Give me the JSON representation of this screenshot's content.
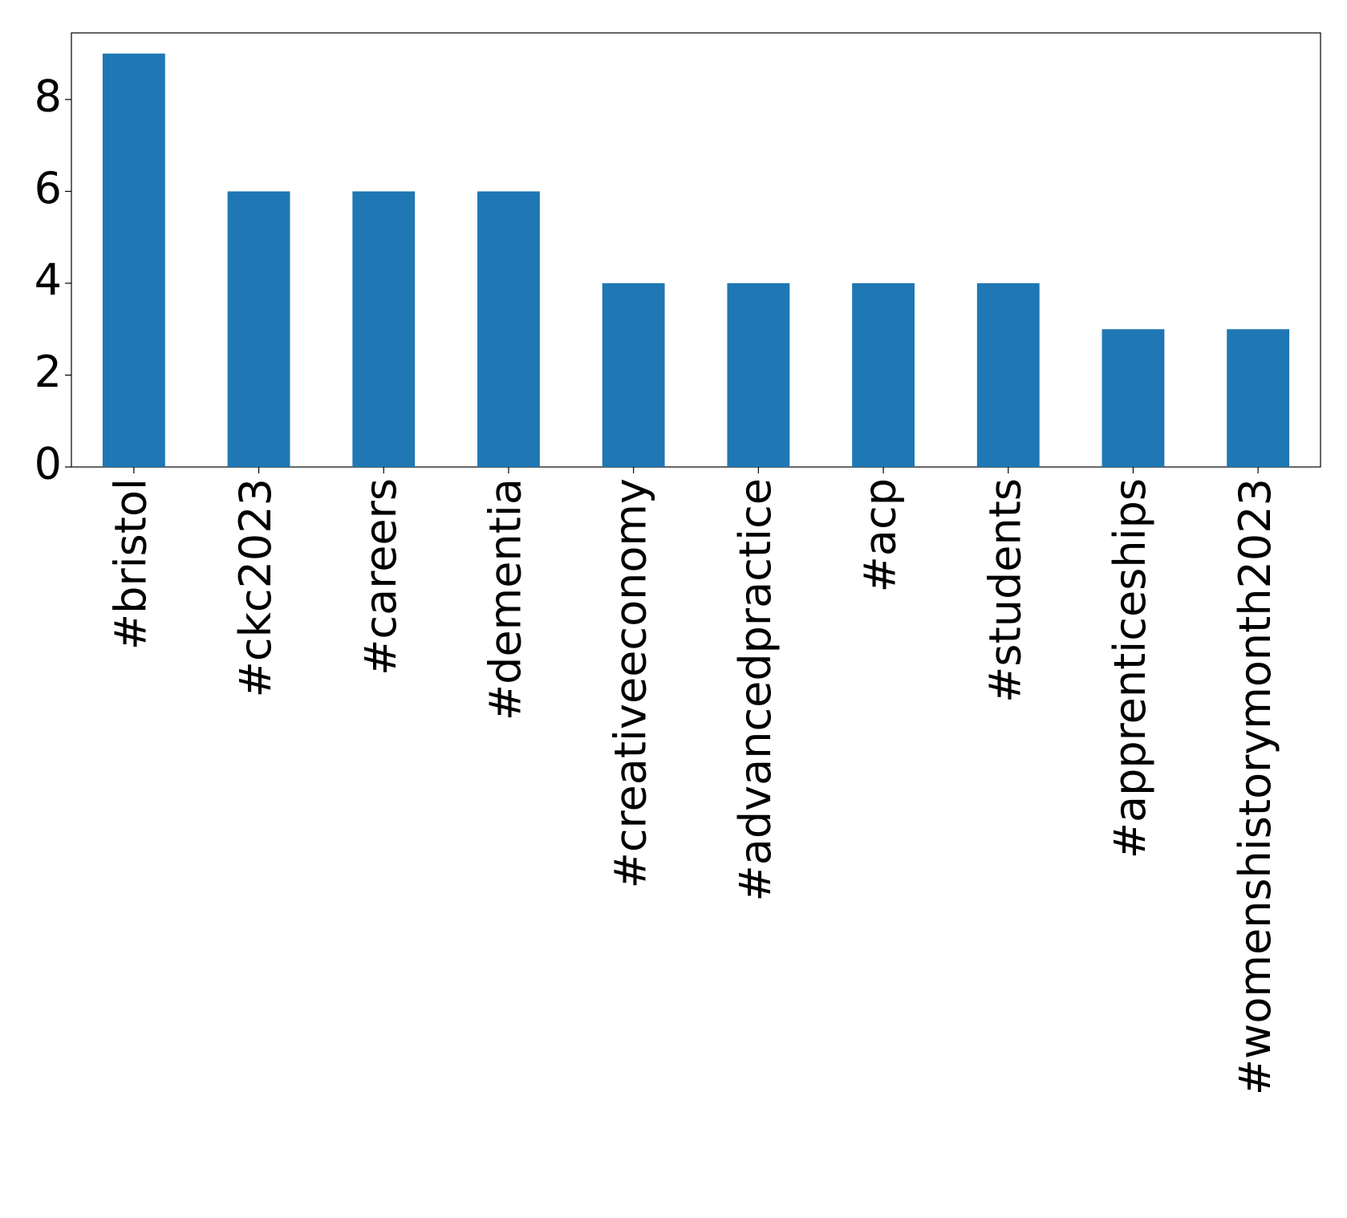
{
  "chart_data": {
    "type": "bar",
    "categories": [
      "#bristol",
      "#ckc2023",
      "#careers",
      "#dementia",
      "#creativeeconomy",
      "#advancedpractice",
      "#acp",
      "#students",
      "#apprenticeships",
      "#womenshistorymonth2023"
    ],
    "values": [
      9,
      6,
      6,
      6,
      4,
      4,
      4,
      4,
      3,
      3
    ],
    "color": "#1f77b4",
    "ylim": [
      0,
      9.45
    ],
    "yticks": [
      0,
      2,
      4,
      6,
      8
    ],
    "grid": false
  }
}
